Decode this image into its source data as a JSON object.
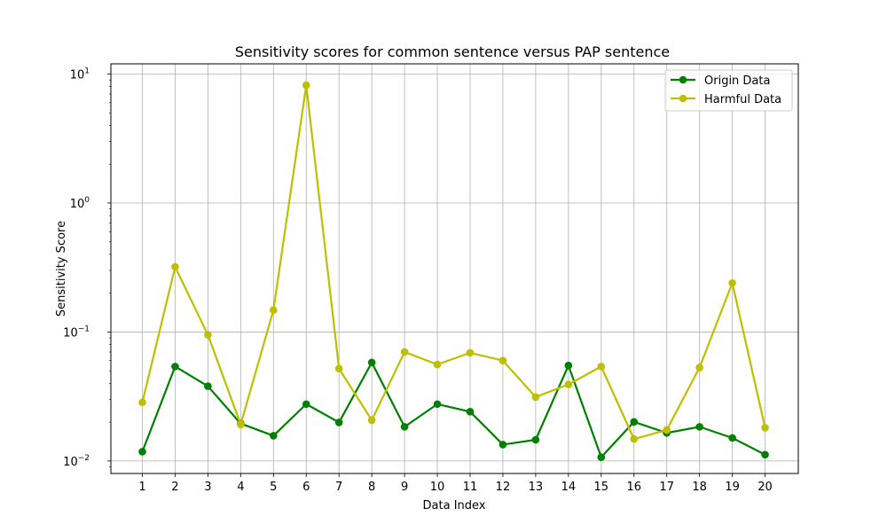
{
  "chart_data": {
    "type": "line",
    "title": "Sensitivity scores for common sentence versus PAP sentence",
    "xlabel": "Data Index",
    "ylabel": "Sensitivity Score",
    "x": [
      1,
      2,
      3,
      4,
      5,
      6,
      7,
      8,
      9,
      10,
      11,
      12,
      13,
      14,
      15,
      16,
      17,
      18,
      19,
      20
    ],
    "y_scale": "log",
    "ylim": [
      0.008,
      12
    ],
    "y_ticks": [
      {
        "value": 0.01,
        "base": "10",
        "exp": "−2"
      },
      {
        "value": 0.1,
        "base": "10",
        "exp": "−1"
      },
      {
        "value": 1,
        "base": "10",
        "exp": "0"
      },
      {
        "value": 10,
        "base": "10",
        "exp": "1"
      }
    ],
    "grid": true,
    "legend_position": "top-right",
    "series": [
      {
        "name": "Origin Data",
        "color": "#008000",
        "values": [
          0.0118,
          0.054,
          0.038,
          0.0195,
          0.0157,
          0.0276,
          0.0199,
          0.058,
          0.0184,
          0.0276,
          0.0241,
          0.0134,
          0.0146,
          0.055,
          0.0107,
          0.0201,
          0.0165,
          0.0184,
          0.0151,
          0.0112
        ]
      },
      {
        "name": "Harmful Data",
        "color": "#bfbf00",
        "values": [
          0.0285,
          0.32,
          0.095,
          0.0192,
          0.148,
          8.2,
          0.052,
          0.0207,
          0.07,
          0.056,
          0.069,
          0.06,
          0.0313,
          0.0392,
          0.054,
          0.0148,
          0.0174,
          0.053,
          0.24,
          0.0181
        ]
      }
    ]
  }
}
